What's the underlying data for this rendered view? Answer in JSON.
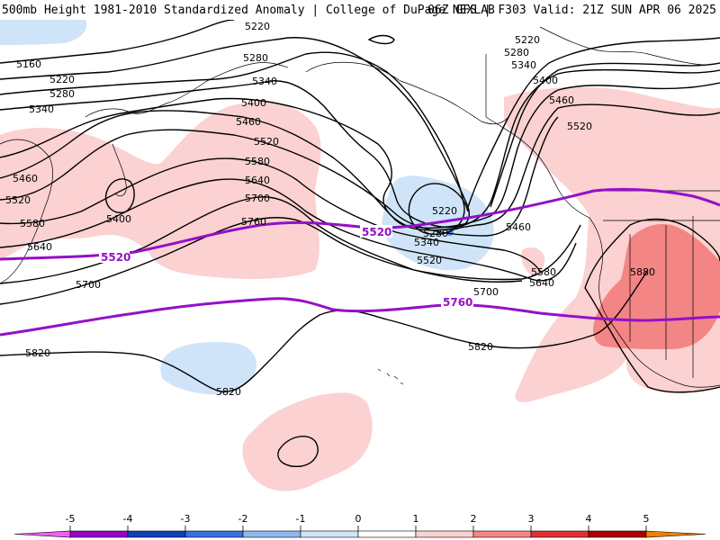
{
  "header": {
    "left": "500mb Height 1981-2010 Standardized Anomaly | College of DuPage NEXLAB",
    "right": "06Z GFS | F303 Valid: 21Z SUN APR 06 2025"
  },
  "colors": {
    "contour": "#000000",
    "climo_contour": "#9410c8",
    "anom_pos1": "#fbd1d1",
    "anom_pos2": "#f48585",
    "anom_neg1": "#cfe4f8",
    "anom_neg2": "#4d8fe0",
    "land_outline": "#000000"
  },
  "contour_labels": {
    "l5220a": "5220",
    "l5220b": "5220",
    "l5220c": "5220",
    "l5220d": "5220",
    "l5160": "5160",
    "l5280a": "5280",
    "l5280b": "5280",
    "l5280c": "5280",
    "l5280d": "5280",
    "l5340a": "5340",
    "l5340b": "5340",
    "l5340c": "5340",
    "l5400a": "5400",
    "l5400b": "5400",
    "l5400c": "5400",
    "l5460a": "5460",
    "l5460b": "5460",
    "l5460c": "5460",
    "l5460d": "5460",
    "l5520a": "5520",
    "l5520b": "5520",
    "l5520c": "5520",
    "l5520d": "5520",
    "l5580a": "5580",
    "l5580b": "5580",
    "l5580c": "5580",
    "l5640a": "5640",
    "l5640b": "5640",
    "l5640c": "5640",
    "l5700a": "5700",
    "l5700b": "5700",
    "l5700c": "5700",
    "l5760": "5760",
    "l5820a": "5820",
    "l5820b": "5820",
    "l5820c": "5820",
    "l5880": "5880"
  },
  "climo_labels": {
    "p5520a": "5520",
    "p5520b": "5520",
    "p5760": "5760"
  },
  "colorbar": {
    "ticks": [
      "-5",
      "-4",
      "-3",
      "-2",
      "-1",
      "0",
      "1",
      "2",
      "3",
      "4",
      "5"
    ],
    "colors": [
      "#f060f0",
      "#9a00c8",
      "#1040b8",
      "#3a70e0",
      "#8fb8f0",
      "#cfe4f8",
      "#ffffff",
      "#fbd1d1",
      "#f48585",
      "#e03030",
      "#b00000",
      "#f08000",
      "#ffc000"
    ]
  }
}
